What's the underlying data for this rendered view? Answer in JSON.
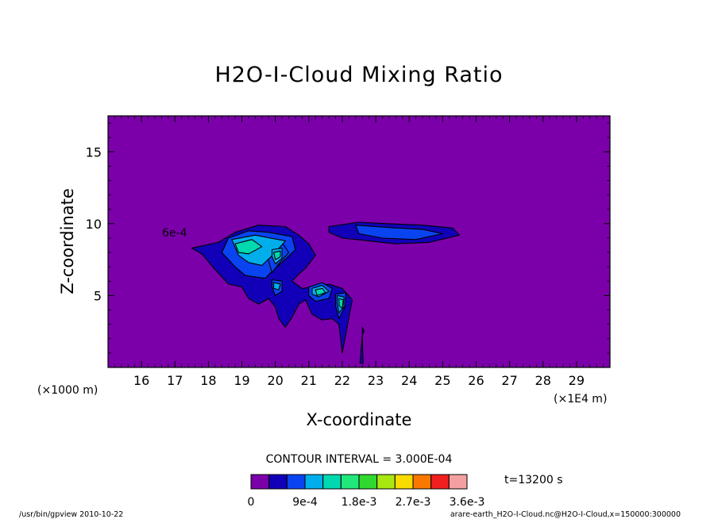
{
  "chart_data": {
    "type": "heatmap",
    "title": "H2O-I-Cloud Mixing Ratio",
    "xlabel": "X-coordinate",
    "ylabel": "Z-coordinate",
    "x_unit_left": "(×1000 m)",
    "x_unit_right": "(×1E4 m)",
    "x_ticks": [
      "16",
      "17",
      "18",
      "19",
      "20",
      "21",
      "22",
      "23",
      "24",
      "25",
      "26",
      "27",
      "28",
      "29"
    ],
    "y_ticks": [
      "5",
      "10",
      "15"
    ],
    "xlim": [
      150,
      300
    ],
    "ylim": [
      0,
      17.5
    ],
    "x_tick_values": [
      160,
      170,
      180,
      190,
      200,
      210,
      220,
      230,
      240,
      250,
      260,
      270,
      280,
      290
    ],
    "y_tick_values": [
      5,
      10,
      15
    ],
    "contour_interval_text": "CONTOUR INTERVAL = 3.000E-04",
    "time_text": "t=13200 s",
    "contour_label": "6e-4",
    "colorbar": {
      "colors": [
        "#7b00aa",
        "#1100b8",
        "#0a44f0",
        "#00aeec",
        "#00d8b0",
        "#20e87a",
        "#30d830",
        "#a8e810",
        "#f8dc00",
        "#f87800",
        "#f02020",
        "#f4a0a0"
      ],
      "labels": [
        "0",
        "9e-4",
        "1.8e-3",
        "2.7e-3",
        "3.6e-3"
      ],
      "label_values": [
        0,
        0.0009,
        0.0018,
        0.0027,
        0.0036
      ],
      "interval": 0.0003
    },
    "cloud_levels": [
      {
        "level": 0.0003,
        "regions": [
          [
            [
              183,
              8.7
            ],
            [
              188,
              9.4
            ],
            [
              195,
              9.9
            ],
            [
              203,
              9.8
            ],
            [
              207,
              9.2
            ],
            [
              210,
              8.6
            ],
            [
              212,
              7.8
            ],
            [
              209,
              6.9
            ],
            [
              207,
              6.5
            ],
            [
              205,
              6.0
            ],
            [
              208,
              5.5
            ],
            [
              212,
              5.6
            ],
            [
              216,
              5.8
            ],
            [
              220,
              5.5
            ],
            [
              223,
              4.7
            ],
            [
              222,
              3.5
            ],
            [
              220,
              1.0
            ],
            [
              219,
              3.0
            ],
            [
              217,
              3.4
            ],
            [
              214,
              3.3
            ],
            [
              211,
              3.7
            ],
            [
              209,
              4.7
            ],
            [
              207,
              4.4
            ],
            [
              205,
              3.5
            ],
            [
              203,
              2.8
            ],
            [
              201,
              3.4
            ],
            [
              200,
              4.2
            ],
            [
              198,
              4.8
            ],
            [
              195,
              4.4
            ],
            [
              192,
              4.8
            ],
            [
              190,
              5.6
            ],
            [
              186,
              5.8
            ],
            [
              182,
              6.8
            ],
            [
              178,
              7.9
            ],
            [
              175,
              8.3
            ],
            [
              183,
              8.7
            ]
          ],
          [
            [
              216,
              9.8
            ],
            [
              225,
              10.1
            ],
            [
              234,
              10.0
            ],
            [
              244,
              9.9
            ],
            [
              253,
              9.7
            ],
            [
              255,
              9.2
            ],
            [
              246,
              8.7
            ],
            [
              236,
              8.6
            ],
            [
              228,
              8.8
            ],
            [
              220,
              9.0
            ],
            [
              216,
              9.4
            ],
            [
              216,
              9.8
            ]
          ],
          [
            [
              226,
              2.3
            ],
            [
              226,
              2.8
            ],
            [
              226.5,
              2.5
            ],
            [
              226,
              2.3
            ],
            [
              226.2,
              0.3
            ],
            [
              225.3,
              0.3
            ],
            [
              226,
              2.3
            ]
          ]
        ]
      },
      {
        "level": 0.0006,
        "regions": [
          [
            [
              186,
              9.0
            ],
            [
              192,
              9.5
            ],
            [
              198,
              9.4
            ],
            [
              205,
              9.1
            ],
            [
              206,
              8.2
            ],
            [
              202,
              7.3
            ],
            [
              199,
              6.7
            ],
            [
              197,
              6.2
            ],
            [
              194,
              6.3
            ],
            [
              191,
              6.4
            ],
            [
              188,
              7.0
            ],
            [
              184,
              8.0
            ],
            [
              186,
              9.0
            ]
          ],
          [
            [
              197,
              8.4
            ],
            [
              202,
              8.7
            ],
            [
              204,
              8.0
            ],
            [
              201,
              7.2
            ],
            [
              199,
              6.6
            ],
            [
              198,
              7.4
            ],
            [
              197,
              8.4
            ]
          ],
          [
            [
              199,
              6.1
            ],
            [
              202,
              6.0
            ],
            [
              202,
              5.3
            ],
            [
              200,
              5.0
            ],
            [
              199,
              5.6
            ],
            [
              199,
              6.1
            ]
          ],
          [
            [
              210,
              5.6
            ],
            [
              214,
              5.9
            ],
            [
              217,
              5.5
            ],
            [
              216,
              4.8
            ],
            [
              212,
              4.6
            ],
            [
              210,
              5.0
            ],
            [
              210,
              5.6
            ]
          ],
          [
            [
              218,
              5.1
            ],
            [
              221,
              5.2
            ],
            [
              221,
              4.3
            ],
            [
              219,
              3.4
            ],
            [
              218,
              4.3
            ],
            [
              218,
              5.1
            ]
          ],
          [
            [
              224,
              9.9
            ],
            [
              236,
              9.7
            ],
            [
              244,
              9.6
            ],
            [
              250,
              9.3
            ],
            [
              242,
              8.9
            ],
            [
              232,
              9.0
            ],
            [
              225,
              9.3
            ],
            [
              224,
              9.9
            ]
          ]
        ]
      },
      {
        "level": 0.0009,
        "regions": [
          [
            [
              187,
              8.9
            ],
            [
              194,
              9.2
            ],
            [
              203,
              8.8
            ],
            [
              200,
              8.0
            ],
            [
              196,
              7.1
            ],
            [
              192,
              7.3
            ],
            [
              189,
              7.8
            ],
            [
              187,
              8.9
            ]
          ],
          [
            [
              199,
              8.2
            ],
            [
              202,
              8.3
            ],
            [
              202,
              7.6
            ],
            [
              200,
              7.2
            ],
            [
              199,
              7.7
            ],
            [
              199,
              8.2
            ]
          ],
          [
            [
              199.5,
              5.9
            ],
            [
              201.5,
              5.8
            ],
            [
              201,
              5.4
            ],
            [
              199.5,
              5.5
            ],
            [
              199.5,
              5.9
            ]
          ],
          [
            [
              211,
              5.5
            ],
            [
              214,
              5.7
            ],
            [
              216,
              5.3
            ],
            [
              213,
              4.9
            ],
            [
              211,
              5.1
            ],
            [
              211,
              5.5
            ]
          ],
          [
            [
              218.5,
              5.0
            ],
            [
              220.5,
              4.9
            ],
            [
              220.5,
              4.2
            ],
            [
              219,
              3.8
            ],
            [
              218.5,
              4.5
            ],
            [
              218.5,
              5.0
            ]
          ]
        ]
      },
      {
        "level": 0.0012,
        "regions": [
          [
            [
              188,
              8.6
            ],
            [
              193,
              8.9
            ],
            [
              196,
              8.4
            ],
            [
              192,
              7.9
            ],
            [
              189,
              8.0
            ],
            [
              188,
              8.6
            ]
          ],
          [
            [
              199.5,
              8.0
            ],
            [
              201.5,
              8.1
            ],
            [
              201.5,
              7.7
            ],
            [
              200,
              7.5
            ],
            [
              199.5,
              8.0
            ]
          ],
          [
            [
              212,
              5.4
            ],
            [
              214,
              5.5
            ],
            [
              215,
              5.2
            ],
            [
              212.5,
              5.0
            ],
            [
              212,
              5.4
            ]
          ],
          [
            [
              219,
              4.8
            ],
            [
              220.3,
              4.7
            ],
            [
              220,
              4.1
            ],
            [
              219.1,
              4.3
            ],
            [
              219,
              4.8
            ]
          ]
        ]
      }
    ]
  },
  "footer": {
    "left": "/usr/bin/gpview   2010-10-22",
    "right": "arare-earth_H2O-I-Cloud.nc@H2O-I-Cloud,x=150000:300000"
  }
}
